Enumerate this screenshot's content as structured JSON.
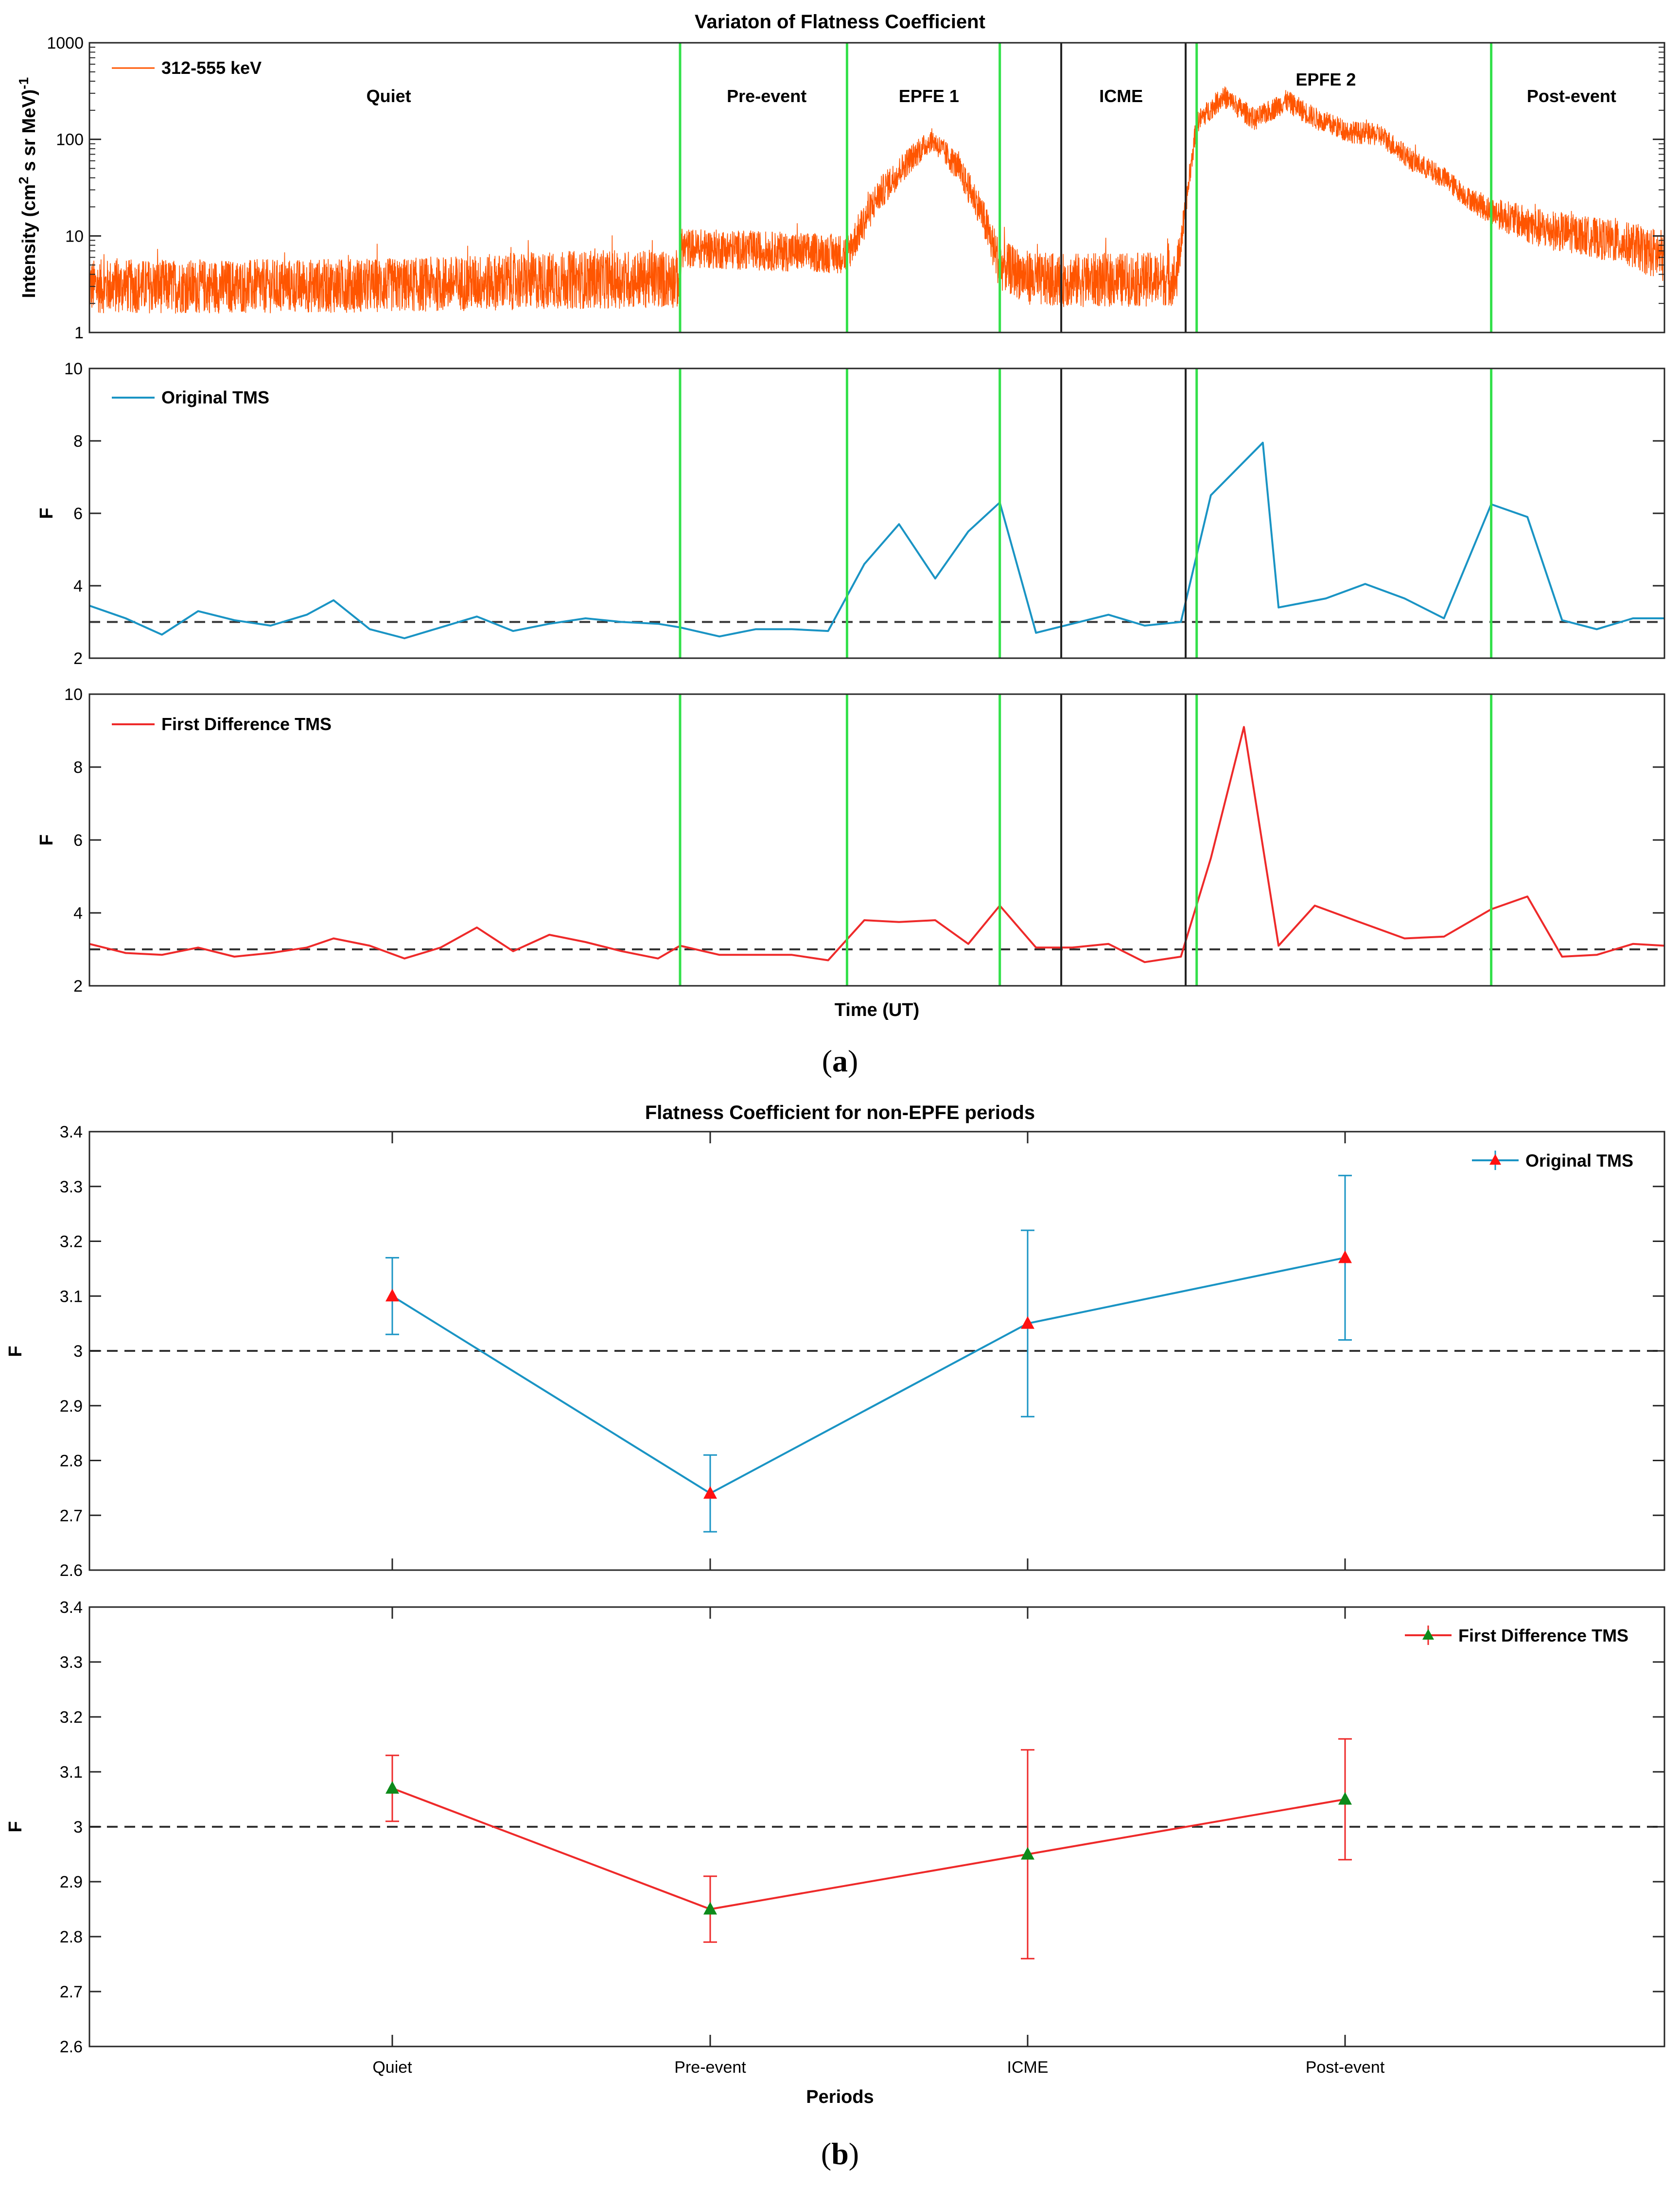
{
  "colors": {
    "intensity": "#ff5500",
    "original": "#1a94c4",
    "first_diff": "#ee2a2a",
    "green_line": "#33e04a",
    "black_line": "#222222",
    "marker_red": "#ff1111",
    "marker_green": "#0d8a1a",
    "threshold": "#333333"
  },
  "panel_a": {
    "label_open": "(",
    "label_letter": "a",
    "label_close": ")",
    "xlabel": "Time (UT)"
  },
  "panel_b": {
    "label_open": "(",
    "label_letter": "b",
    "label_close": ")"
  },
  "chart_data": [
    {
      "type": "line",
      "title": "Variaton of Flatness Coefficient",
      "ylabel_parts": [
        "Intensity (cm",
        "2",
        " s sr MeV)",
        "-1"
      ],
      "yscale": "log",
      "ylim": [
        1,
        1000
      ],
      "yticks": [
        1,
        10,
        100,
        1000
      ],
      "ytick_labels": [
        "1",
        "10",
        "100",
        "1000"
      ],
      "legend": "312-555 keV",
      "legend_position": "top-left",
      "period_labels": [
        {
          "text": "Quiet",
          "x": 0.19
        },
        {
          "text": "Pre-event",
          "x": 0.43
        },
        {
          "text": "EPFE 1",
          "x": 0.533
        },
        {
          "text": "ICME",
          "x": 0.655
        },
        {
          "text": "EPFE 2",
          "x": 0.785
        },
        {
          "text": "Post-event",
          "x": 0.941
        }
      ],
      "green_boundaries": [
        0.375,
        0.481,
        0.578,
        0.703,
        0.89
      ],
      "black_boundaries": [
        0.617,
        0.696
      ],
      "envelope": {
        "x": [
          0,
          0.1,
          0.2,
          0.3,
          0.375,
          0.376,
          0.43,
          0.481,
          0.5,
          0.52,
          0.535,
          0.55,
          0.565,
          0.578,
          0.6,
          0.617,
          0.65,
          0.69,
          0.696,
          0.703,
          0.72,
          0.74,
          0.76,
          0.78,
          0.8,
          0.82,
          0.84,
          0.86,
          0.875,
          0.89,
          0.92,
          0.95,
          0.98,
          1.0
        ],
        "center": [
          3,
          3,
          3.1,
          3.5,
          3.6,
          7.5,
          7,
          6.5,
          25,
          60,
          100,
          55,
          20,
          5,
          3.5,
          3.5,
          3.5,
          3.6,
          20,
          150,
          280,
          160,
          250,
          160,
          120,
          110,
          60,
          40,
          25,
          18,
          12,
          10,
          8,
          6
        ],
        "spread": [
          1.9,
          1.9,
          1.9,
          2.0,
          2.0,
          1.6,
          1.6,
          1.6,
          1.5,
          1.4,
          1.3,
          1.4,
          1.5,
          1.8,
          1.9,
          1.9,
          1.9,
          1.9,
          1.3,
          1.3,
          1.3,
          1.3,
          1.3,
          1.3,
          1.3,
          1.3,
          1.3,
          1.3,
          1.3,
          1.4,
          1.6,
          1.6,
          1.7,
          1.9
        ]
      }
    },
    {
      "type": "line",
      "ylabel": "F",
      "ylim": [
        2,
        10
      ],
      "yticks": [
        2,
        4,
        6,
        8,
        10
      ],
      "threshold": 3,
      "legend": "Original TMS",
      "legend_position": "top-left",
      "x": [
        0,
        0.023,
        0.046,
        0.069,
        0.092,
        0.115,
        0.138,
        0.155,
        0.178,
        0.2,
        0.223,
        0.246,
        0.269,
        0.292,
        0.315,
        0.338,
        0.361,
        0.375,
        0.4,
        0.423,
        0.446,
        0.469,
        0.492,
        0.514,
        0.537,
        0.558,
        0.578,
        0.601,
        0.624,
        0.647,
        0.67,
        0.693,
        0.712,
        0.745,
        0.755,
        0.785,
        0.81,
        0.835,
        0.86,
        0.89,
        0.913,
        0.935,
        0.957,
        0.98,
        1.0
      ],
      "y": [
        3.45,
        3.1,
        2.65,
        3.3,
        3.05,
        2.9,
        3.2,
        3.6,
        2.8,
        2.55,
        2.85,
        3.15,
        2.75,
        2.95,
        3.1,
        3.0,
        2.95,
        2.85,
        2.6,
        2.8,
        2.8,
        2.75,
        4.6,
        5.7,
        4.2,
        5.5,
        6.3,
        2.7,
        2.95,
        3.2,
        2.9,
        3.0,
        6.5,
        7.95,
        3.4,
        3.65,
        4.05,
        3.65,
        3.1,
        6.25,
        5.9,
        3.05,
        2.8,
        3.1,
        3.1
      ]
    },
    {
      "type": "line",
      "ylabel": "F",
      "ylim": [
        2,
        10
      ],
      "yticks": [
        2,
        4,
        6,
        8,
        10
      ],
      "threshold": 3,
      "legend": "First Difference TMS",
      "legend_position": "top-left",
      "x": [
        0,
        0.023,
        0.046,
        0.069,
        0.092,
        0.115,
        0.138,
        0.155,
        0.178,
        0.2,
        0.223,
        0.246,
        0.269,
        0.292,
        0.315,
        0.338,
        0.361,
        0.375,
        0.4,
        0.423,
        0.446,
        0.469,
        0.492,
        0.514,
        0.537,
        0.558,
        0.578,
        0.601,
        0.624,
        0.647,
        0.67,
        0.693,
        0.712,
        0.733,
        0.755,
        0.778,
        0.8,
        0.835,
        0.86,
        0.89,
        0.913,
        0.935,
        0.957,
        0.98,
        1.0
      ],
      "y": [
        3.15,
        2.9,
        2.85,
        3.05,
        2.8,
        2.9,
        3.05,
        3.3,
        3.1,
        2.75,
        3.05,
        3.6,
        2.95,
        3.4,
        3.2,
        2.95,
        2.75,
        3.1,
        2.85,
        2.85,
        2.85,
        2.7,
        3.8,
        3.75,
        3.8,
        3.15,
        4.2,
        3.05,
        3.05,
        3.15,
        2.65,
        2.8,
        5.5,
        9.1,
        3.1,
        4.2,
        3.85,
        3.3,
        3.35,
        4.1,
        4.45,
        2.8,
        2.85,
        3.15,
        3.1
      ]
    },
    {
      "type": "line",
      "title": "Flatness Coefficient for non-EPFE periods",
      "ylabel": "F",
      "ylim": [
        2.6,
        3.4
      ],
      "yticks": [
        2.6,
        2.7,
        2.8,
        2.9,
        3.0,
        3.1,
        3.2,
        3.3,
        3.4
      ],
      "ytick_labels": [
        "2.6",
        "2.7",
        "2.8",
        "2.9",
        "3",
        "3.1",
        "3.2",
        "3.3",
        "3.4"
      ],
      "threshold": 3,
      "legend": "Original TMS",
      "legend_position": "top-right",
      "categories": [
        "Quiet",
        "Pre-event",
        "ICME",
        "Post-event"
      ],
      "values": [
        3.1,
        2.74,
        3.05,
        3.17
      ],
      "errors": [
        0.07,
        0.07,
        0.17,
        0.15
      ]
    },
    {
      "type": "line",
      "xlabel": "Periods",
      "ylabel": "F",
      "ylim": [
        2.6,
        3.4
      ],
      "yticks": [
        2.6,
        2.7,
        2.8,
        2.9,
        3.0,
        3.1,
        3.2,
        3.3,
        3.4
      ],
      "ytick_labels": [
        "2.6",
        "2.7",
        "2.8",
        "2.9",
        "3",
        "3.1",
        "3.2",
        "3.3",
        "3.4"
      ],
      "threshold": 3,
      "legend": "First Difference TMS",
      "legend_position": "top-right",
      "categories": [
        "Quiet",
        "Pre-event",
        "ICME",
        "Post-event"
      ],
      "values": [
        3.07,
        2.85,
        2.95,
        3.05
      ],
      "errors": [
        0.06,
        0.06,
        0.19,
        0.11
      ]
    }
  ]
}
